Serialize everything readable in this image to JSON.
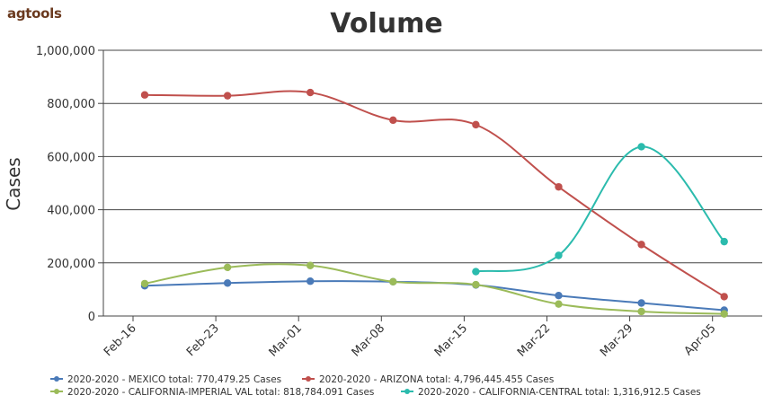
{
  "logo": "agtools",
  "chart_data": {
    "type": "line",
    "title": "Volume",
    "xlabel": "",
    "ylabel": "Cases",
    "ylim": [
      0,
      1000000
    ],
    "yticks": [
      "0",
      "200,000",
      "400,000",
      "600,000",
      "800,000",
      "1,000,000"
    ],
    "ytick_values": [
      0,
      200000,
      400000,
      600000,
      800000,
      1000000
    ],
    "categories": [
      "Feb-16",
      "Feb-23",
      "Mar-01",
      "Mar-08",
      "Mar-15",
      "Mar-22",
      "Mar-29",
      "Apr-05"
    ],
    "x_points": [
      "Feb-19",
      "Feb-26",
      "Mar-04",
      "Mar-11",
      "Mar-18",
      "Mar-25",
      "Apr-01",
      "Apr-08"
    ],
    "grid": true,
    "legend_position": "bottom",
    "series": [
      {
        "name": "2020-2020 - MEXICO total: 770,479.25 Cases",
        "color": "#4a7ab8",
        "values": [
          114000,
          124000,
          131000,
          129000,
          117000,
          77000,
          49000,
          22000
        ]
      },
      {
        "name": "2020-2020 - ARIZONA total: 4,796,445.455 Cases",
        "color": "#c0504d",
        "values": [
          832000,
          829000,
          841000,
          737000,
          720000,
          486000,
          269000,
          73000
        ]
      },
      {
        "name": "2020-2020 - CALIFORNIA-IMPERIAL VAL total: 818,784.091 Cases",
        "color": "#9bbb59",
        "values": [
          122000,
          183000,
          190000,
          129000,
          118000,
          45000,
          17000,
          8000
        ]
      },
      {
        "name": "2020-2020 - CALIFORNIA-CENTRAL total: 1,316,912.5 Cases",
        "color": "#2bbbad",
        "values": [
          null,
          null,
          null,
          null,
          167000,
          228000,
          637000,
          280000
        ]
      }
    ]
  }
}
